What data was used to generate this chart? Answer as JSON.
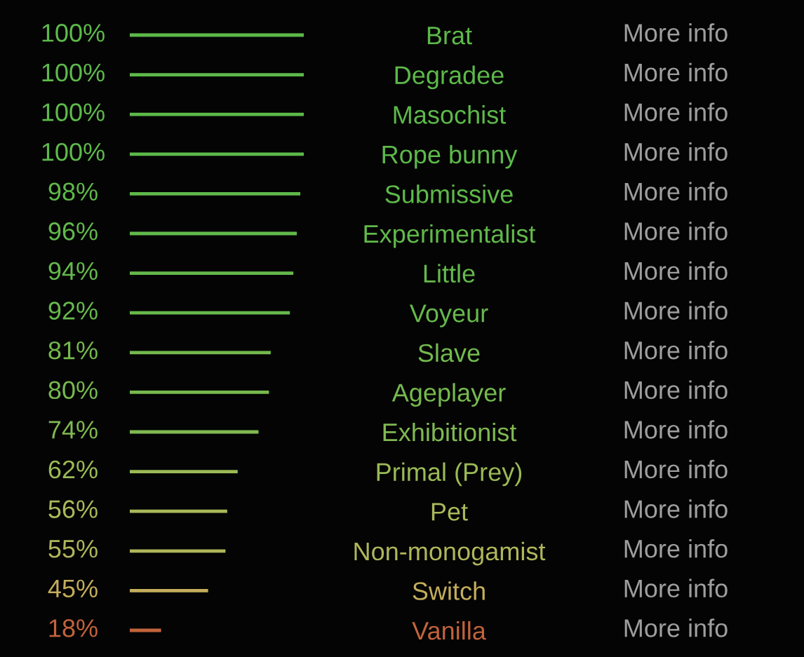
{
  "chart_data": {
    "type": "bar",
    "orientation": "horizontal",
    "categories": [
      "Brat",
      "Degradee",
      "Masochist",
      "Rope bunny",
      "Submissive",
      "Experimentalist",
      "Little",
      "Voyeur",
      "Slave",
      "Ageplayer",
      "Exhibitionist",
      "Primal (Prey)",
      "Pet",
      "Non-monogamist",
      "Switch",
      "Vanilla"
    ],
    "values": [
      100,
      100,
      100,
      100,
      98,
      96,
      94,
      92,
      81,
      80,
      74,
      62,
      56,
      55,
      45,
      18
    ],
    "value_labels": [
      "100%",
      "100%",
      "100%",
      "100%",
      "98%",
      "96%",
      "94%",
      "92%",
      "81%",
      "80%",
      "74%",
      "62%",
      "56%",
      "55%",
      "45%",
      "18%"
    ],
    "colors": [
      "#5db94a",
      "#5db94a",
      "#5db94a",
      "#5db94a",
      "#5fb94a",
      "#61b94b",
      "#64b94c",
      "#66b94c",
      "#74b94e",
      "#76b94f",
      "#80b952",
      "#9bba56",
      "#aab85a",
      "#b0b65b",
      "#c4ae5c",
      "#c2633a"
    ],
    "xlim": [
      0,
      100
    ],
    "tick_labels": "y",
    "annotations": [
      "More info",
      "More info",
      "More info",
      "More info",
      "More info",
      "More info",
      "More info",
      "More info",
      "More info",
      "More info",
      "More info",
      "More info",
      "More info",
      "More info",
      "More info",
      "More info"
    ]
  }
}
